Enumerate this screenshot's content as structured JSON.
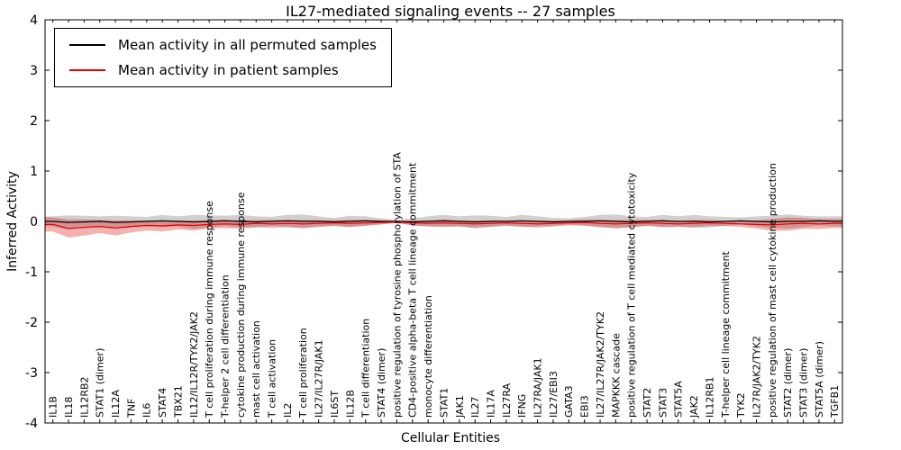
{
  "title": "IL27-mediated signaling events -- 27 samples",
  "axes": {
    "x_label": "Cellular Entities",
    "y_label": "Inferred Activity"
  },
  "legend": {
    "position": "upper left",
    "items": [
      {
        "label": "Mean activity in all permuted samples",
        "color": "#000000"
      },
      {
        "label": "Mean activity in patient samples",
        "color": "#e00000"
      }
    ]
  },
  "chart_data": {
    "type": "line",
    "title": "IL27-mediated signaling events -- 27 samples",
    "xlabel": "Cellular Entities",
    "ylabel": "Inferred Activity",
    "ylim": [
      -4,
      4
    ],
    "yticks": [
      -4,
      -3,
      -2,
      -1,
      0,
      1,
      2,
      3,
      4
    ],
    "grid": false,
    "legend_position": "upper left",
    "categories": [
      "IL1B",
      "IL18",
      "IL12RB2",
      "STAT1 (dimer)",
      "IL12A",
      "TNF",
      "IL6",
      "STAT4",
      "TBX21",
      "IL12/IL12R/TYK2/JAK2",
      "T cell proliferation during immune response",
      "T-helper 2 cell differentiation",
      "cytokine production during immune response",
      "mast cell activation",
      "T cell activation",
      "IL2",
      "T cell proliferation",
      "IL27/IL27R/JAK1",
      "IL6ST",
      "IL12B",
      "T cell differentiation",
      "STAT4 (dimer)",
      "positive regulation of tyrosine phosphorylation of STA",
      "CD4-positive alpha-beta T cell lineage commitment",
      "monocyte differentiation",
      "STAT1",
      "JAK1",
      "IL27",
      "IL17A",
      "IL27RA",
      "IFNG",
      "IL27RA/JAK1",
      "IL27/EBI3",
      "GATA3",
      "EBI3",
      "IL27/IL27R/JAK2/TYK2",
      "MAPKKK cascade",
      "positive regulation of T cell mediated cytotoxicity",
      "STAT2",
      "STAT3",
      "STAT5A",
      "JAK2",
      "IL12RB1",
      "T-helper cell lineage commitment",
      "TYK2",
      "IL27R/JAK2/TYK2",
      "positive regulation of mast cell cytokine production",
      "STAT2 (dimer)",
      "STAT3 (dimer)",
      "STAT5A (dimer)",
      "TGFB1"
    ],
    "series": [
      {
        "id": "permuted",
        "name": "Mean activity in all permuted samples",
        "color": "#000000",
        "band_color": "rgba(100,100,100,0.30)",
        "values": [
          0,
          -0.02,
          -0.01,
          0,
          -0.02,
          -0.01,
          0,
          0.01,
          0,
          -0.01,
          0,
          0.01,
          0,
          -0.01,
          0,
          0.01,
          0,
          0,
          -0.01,
          0,
          0.01,
          0,
          0,
          -0.01,
          0,
          0.01,
          0,
          -0.01,
          0,
          0,
          0.01,
          0,
          -0.01,
          0,
          0,
          0.01,
          0,
          -0.01,
          0,
          0.01,
          0,
          0,
          -0.01,
          0,
          0.01,
          0,
          -0.01,
          0,
          0,
          0.01,
          0
        ],
        "band_halfwidth": [
          0.1,
          0.14,
          0.12,
          0.1,
          0.13,
          0.11,
          0.09,
          0.12,
          0.1,
          0.14,
          0.12,
          0.1,
          0.13,
          0.11,
          0.09,
          0.12,
          0.14,
          0.1,
          0.08,
          0.11,
          0.09,
          0.06,
          0.03,
          0.07,
          0.1,
          0.12,
          0.1,
          0.13,
          0.11,
          0.09,
          0.12,
          0.1,
          0.08,
          0.06,
          0.09,
          0.12,
          0.14,
          0.11,
          0.09,
          0.12,
          0.1,
          0.13,
          0.11,
          0.09,
          0.07,
          0.1,
          0.12,
          0.14,
          0.11,
          0.09,
          0.1
        ]
      },
      {
        "id": "patient",
        "name": "Mean activity in patient samples",
        "color": "#e00000",
        "band_color": "rgba(225,30,30,0.35)",
        "values": [
          -0.06,
          -0.14,
          -0.12,
          -0.1,
          -0.13,
          -0.1,
          -0.08,
          -0.09,
          -0.07,
          -0.08,
          -0.06,
          -0.05,
          -0.06,
          -0.04,
          -0.05,
          -0.04,
          -0.05,
          -0.04,
          -0.03,
          -0.04,
          -0.03,
          -0.02,
          -0.01,
          -0.03,
          -0.04,
          -0.03,
          -0.04,
          -0.05,
          -0.04,
          -0.03,
          -0.04,
          -0.05,
          -0.04,
          -0.03,
          -0.02,
          -0.04,
          -0.05,
          -0.04,
          -0.03,
          -0.04,
          -0.05,
          -0.04,
          -0.03,
          -0.04,
          -0.05,
          -0.06,
          -0.07,
          -0.05,
          -0.04,
          -0.05,
          -0.04
        ],
        "band_halfwidth": [
          0.14,
          0.18,
          0.16,
          0.13,
          0.15,
          0.12,
          0.1,
          0.11,
          0.09,
          0.1,
          0.08,
          0.09,
          0.08,
          0.07,
          0.08,
          0.07,
          0.08,
          0.07,
          0.06,
          0.07,
          0.06,
          0.04,
          0.02,
          0.05,
          0.06,
          0.07,
          0.06,
          0.07,
          0.06,
          0.05,
          0.06,
          0.07,
          0.06,
          0.05,
          0.06,
          0.07,
          0.08,
          0.07,
          0.06,
          0.07,
          0.06,
          0.07,
          0.06,
          0.05,
          0.06,
          0.08,
          0.12,
          0.13,
          0.11,
          0.1,
          0.09
        ]
      }
    ]
  }
}
